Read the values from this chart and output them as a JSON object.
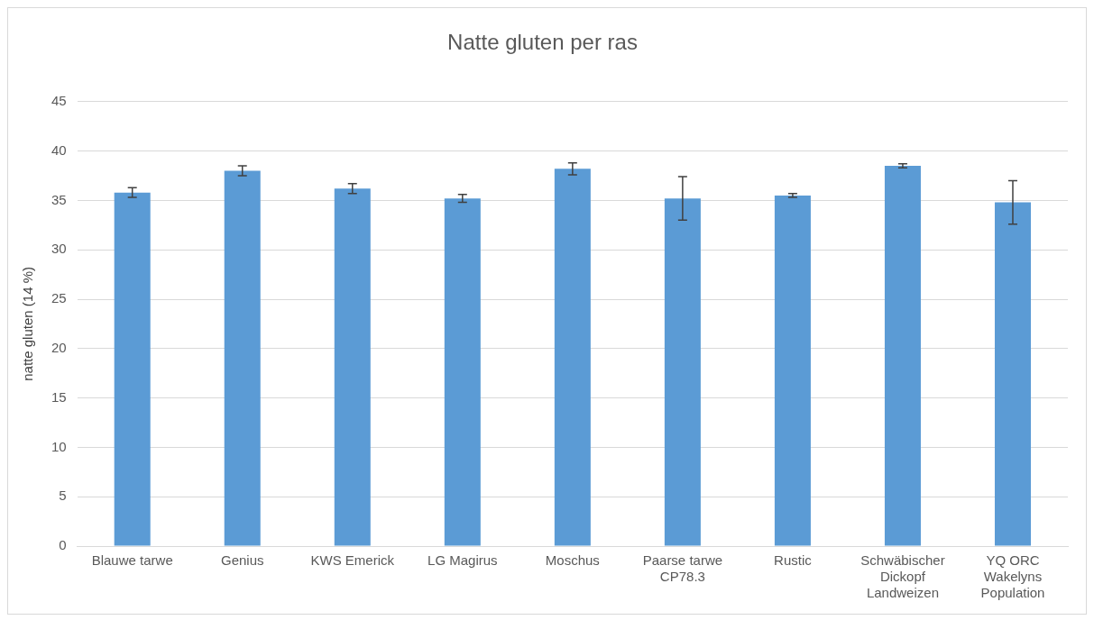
{
  "chart_data": {
    "type": "bar",
    "title": "Natte gluten per ras",
    "ylabel": "natte gluten (14 %)",
    "categories": [
      "Blauwe tarwe",
      "Genius",
      "KWS Emerick",
      "LG Magirus",
      "Moschus",
      "Paarse tarwe CP78.3",
      "Rustic",
      "Schwäbischer Dickopf Landweizen",
      "YQ ORC Wakelyns Population"
    ],
    "values": [
      35.8,
      38.0,
      36.2,
      35.2,
      38.2,
      35.2,
      35.5,
      38.5,
      34.8
    ],
    "errors": [
      0.5,
      0.5,
      0.5,
      0.4,
      0.6,
      2.2,
      0.2,
      0.2,
      2.2
    ],
    "color": "#5b9bd5",
    "ylim": [
      0,
      45
    ],
    "yticks": [
      0,
      5,
      10,
      15,
      20,
      25,
      30,
      35,
      40,
      45
    ],
    "grid": "y",
    "legend": false
  }
}
